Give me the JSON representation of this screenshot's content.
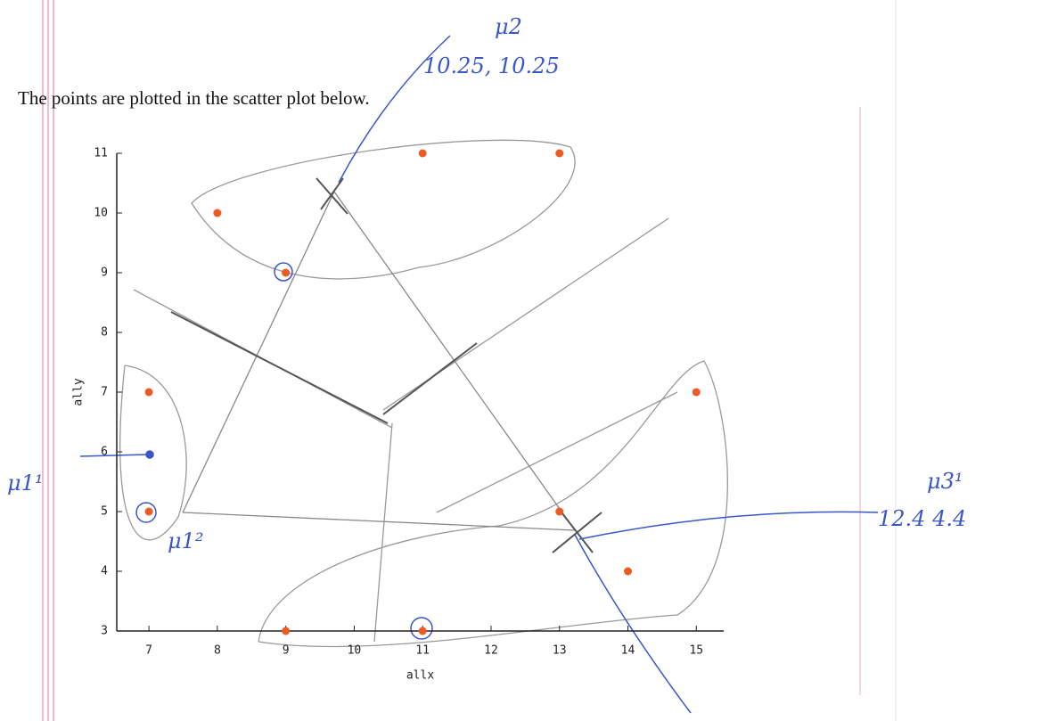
{
  "intro": "The points are plotted in the scatter plot below.",
  "chart_data": {
    "type": "scatter",
    "x": [
      7,
      7,
      8,
      9,
      9,
      11,
      11,
      13,
      13,
      14,
      15
    ],
    "values": [
      7,
      5,
      10,
      9,
      3,
      11,
      3,
      11,
      5,
      4,
      7
    ],
    "color": "#ee5a24",
    "xlabel": "allx",
    "ylabel": "ally",
    "xlim": [
      6.53,
      15.4
    ],
    "ylim": [
      3,
      11
    ],
    "xticks": [
      7,
      8,
      9,
      10,
      11,
      12,
      13,
      14,
      15
    ],
    "yticks": [
      3,
      4,
      5,
      6,
      7,
      8,
      9,
      10,
      11
    ],
    "annotations": [
      "μ2",
      "10.25, 10.25",
      "μ1¹",
      "μ1²",
      "μ3¹",
      "12.4   4.4"
    ]
  }
}
